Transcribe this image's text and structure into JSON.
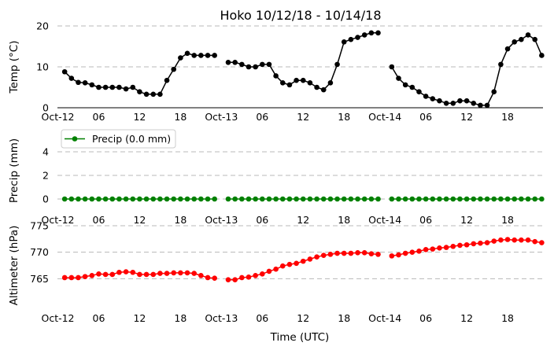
{
  "chart_data": [
    {
      "type": "line",
      "title": "Hoko 10/12/18 - 10/14/18",
      "ylabel": "Temp (°C)",
      "ylim": [
        0,
        20
      ],
      "yticks": [
        "0",
        "10",
        "20"
      ],
      "xticks": [
        "Oct-12",
        "06",
        "12",
        "18",
        "Oct-13",
        "06",
        "12",
        "18",
        "Oct-14",
        "06",
        "12",
        "18"
      ],
      "grid": "horizontal-dashed",
      "series": [
        {
          "color": "#000000",
          "points": [
            [
              1,
              8.8
            ],
            [
              2,
              7.2
            ],
            [
              3,
              6.2
            ],
            [
              4,
              6.1
            ],
            [
              5,
              5.6
            ],
            [
              6,
              5
            ],
            [
              7,
              5
            ],
            [
              8,
              5
            ],
            [
              9,
              5
            ],
            [
              10,
              4.6
            ],
            [
              11,
              5
            ],
            [
              12,
              3.9
            ],
            [
              13,
              3.3
            ],
            [
              14,
              3.3
            ],
            [
              15,
              3.3
            ],
            [
              16,
              6.7
            ],
            [
              17,
              9.4
            ],
            [
              18,
              12.2
            ],
            [
              19,
              13.3
            ],
            [
              20,
              12.8
            ],
            [
              21,
              12.8
            ],
            [
              22,
              12.8
            ],
            [
              23,
              12.8
            ],
            [
              25,
              11.1
            ],
            [
              26,
              11.1
            ],
            [
              27,
              10.6
            ],
            [
              28,
              10
            ],
            [
              29,
              10
            ],
            [
              30,
              10.6
            ],
            [
              31,
              10.6
            ],
            [
              32,
              7.8
            ],
            [
              33,
              6.1
            ],
            [
              34,
              5.6
            ],
            [
              35,
              6.7
            ],
            [
              36,
              6.7
            ],
            [
              37,
              6.1
            ],
            [
              38,
              5
            ],
            [
              39,
              4.4
            ],
            [
              40,
              6.1
            ],
            [
              41,
              10.6
            ],
            [
              42,
              16.1
            ],
            [
              43,
              16.7
            ],
            [
              44,
              17.2
            ],
            [
              45,
              17.8
            ],
            [
              46,
              18.3
            ],
            [
              47,
              18.3
            ],
            [
              49,
              10
            ],
            [
              50,
              7.2
            ],
            [
              51,
              5.6
            ],
            [
              52,
              5
            ],
            [
              53,
              3.9
            ],
            [
              54,
              2.8
            ],
            [
              55,
              2.2
            ],
            [
              56,
              1.7
            ],
            [
              57,
              1.1
            ],
            [
              58,
              1.1
            ],
            [
              59,
              1.7
            ],
            [
              60,
              1.7
            ],
            [
              61,
              1.1
            ],
            [
              62,
              0.6
            ],
            [
              63,
              0.6
            ],
            [
              64,
              3.9
            ],
            [
              65,
              10.6
            ],
            [
              66,
              14.4
            ],
            [
              67,
              16.1
            ],
            [
              68,
              16.7
            ],
            [
              69,
              17.8
            ],
            [
              70,
              16.7
            ],
            [
              71,
              12.8
            ]
          ]
        }
      ]
    },
    {
      "type": "line",
      "title": "",
      "ylabel": "Precip (mm)",
      "ylim": [
        -0.2,
        5
      ],
      "yticks": [
        "0",
        "2",
        "4"
      ],
      "xticks": [
        "Oct-12",
        "06",
        "12",
        "18",
        "Oct-13",
        "06",
        "12",
        "18",
        "Oct-14",
        "06",
        "12",
        "18"
      ],
      "grid": "horizontal-dashed",
      "legend": "top-left",
      "series": [
        {
          "name": "Precip (0.0 mm)",
          "color": "#008000",
          "points": [
            [
              1,
              0
            ],
            [
              2,
              0
            ],
            [
              3,
              0
            ],
            [
              4,
              0
            ],
            [
              5,
              0
            ],
            [
              6,
              0
            ],
            [
              7,
              0
            ],
            [
              8,
              0
            ],
            [
              9,
              0
            ],
            [
              10,
              0
            ],
            [
              11,
              0
            ],
            [
              12,
              0
            ],
            [
              13,
              0
            ],
            [
              14,
              0
            ],
            [
              15,
              0
            ],
            [
              16,
              0
            ],
            [
              17,
              0
            ],
            [
              18,
              0
            ],
            [
              19,
              0
            ],
            [
              20,
              0
            ],
            [
              21,
              0
            ],
            [
              22,
              0
            ],
            [
              23,
              0
            ],
            [
              25,
              0
            ],
            [
              26,
              0
            ],
            [
              27,
              0
            ],
            [
              28,
              0
            ],
            [
              29,
              0
            ],
            [
              30,
              0
            ],
            [
              31,
              0
            ],
            [
              32,
              0
            ],
            [
              33,
              0
            ],
            [
              34,
              0
            ],
            [
              35,
              0
            ],
            [
              36,
              0
            ],
            [
              37,
              0
            ],
            [
              38,
              0
            ],
            [
              39,
              0
            ],
            [
              40,
              0
            ],
            [
              41,
              0
            ],
            [
              42,
              0
            ],
            [
              43,
              0
            ],
            [
              44,
              0
            ],
            [
              45,
              0
            ],
            [
              46,
              0
            ],
            [
              47,
              0
            ],
            [
              49,
              0
            ],
            [
              50,
              0
            ],
            [
              51,
              0
            ],
            [
              52,
              0
            ],
            [
              53,
              0
            ],
            [
              54,
              0
            ],
            [
              55,
              0
            ],
            [
              56,
              0
            ],
            [
              57,
              0
            ],
            [
              58,
              0
            ],
            [
              59,
              0
            ],
            [
              60,
              0
            ],
            [
              61,
              0
            ],
            [
              62,
              0
            ],
            [
              63,
              0
            ],
            [
              64,
              0
            ],
            [
              65,
              0
            ],
            [
              66,
              0
            ],
            [
              67,
              0
            ],
            [
              68,
              0
            ],
            [
              69,
              0
            ],
            [
              70,
              0
            ],
            [
              71,
              0
            ]
          ]
        }
      ]
    },
    {
      "type": "line",
      "title": "",
      "ylabel": "Altimeter (hPa)",
      "xlabel": "Time (UTC)",
      "ylim": [
        760,
        775
      ],
      "yticks": [
        "765",
        "770",
        "775"
      ],
      "xticks": [
        "Oct-12",
        "06",
        "12",
        "18",
        "Oct-13",
        "06",
        "12",
        "18",
        "Oct-14",
        "06",
        "12",
        "18"
      ],
      "grid": "horizontal-dashed",
      "series": [
        {
          "color": "#ff0000",
          "points": [
            [
              1,
              765.2
            ],
            [
              2,
              765.2
            ],
            [
              3,
              765.2
            ],
            [
              4,
              765.4
            ],
            [
              5,
              765.6
            ],
            [
              6,
              765.9
            ],
            [
              7,
              765.8
            ],
            [
              8,
              765.8
            ],
            [
              9,
              766.2
            ],
            [
              10,
              766.3
            ],
            [
              11,
              766.2
            ],
            [
              12,
              765.8
            ],
            [
              13,
              765.8
            ],
            [
              14,
              765.8
            ],
            [
              15,
              766
            ],
            [
              16,
              766
            ],
            [
              17,
              766.1
            ],
            [
              18,
              766.1
            ],
            [
              19,
              766.1
            ],
            [
              20,
              766
            ],
            [
              21,
              765.6
            ],
            [
              22,
              765.2
            ],
            [
              23,
              765.1
            ],
            [
              25,
              764.8
            ],
            [
              26,
              764.8
            ],
            [
              27,
              765.2
            ],
            [
              28,
              765.3
            ],
            [
              29,
              765.6
            ],
            [
              30,
              765.9
            ],
            [
              31,
              766.4
            ],
            [
              32,
              766.8
            ],
            [
              33,
              767.4
            ],
            [
              34,
              767.7
            ],
            [
              35,
              767.9
            ],
            [
              36,
              768.3
            ],
            [
              37,
              768.7
            ],
            [
              38,
              769.1
            ],
            [
              39,
              769.4
            ],
            [
              40,
              769.6
            ],
            [
              41,
              769.8
            ],
            [
              42,
              769.8
            ],
            [
              43,
              769.8
            ],
            [
              44,
              769.9
            ],
            [
              45,
              769.9
            ],
            [
              46,
              769.7
            ],
            [
              47,
              769.6
            ],
            [
              49,
              769.3
            ],
            [
              50,
              769.5
            ],
            [
              51,
              769.8
            ],
            [
              52,
              770
            ],
            [
              53,
              770.2
            ],
            [
              54,
              770.5
            ],
            [
              55,
              770.6
            ],
            [
              56,
              770.8
            ],
            [
              57,
              770.9
            ],
            [
              58,
              771.1
            ],
            [
              59,
              771.3
            ],
            [
              60,
              771.4
            ],
            [
              61,
              771.6
            ],
            [
              62,
              771.7
            ],
            [
              63,
              771.8
            ],
            [
              64,
              772.1
            ],
            [
              65,
              772.3
            ],
            [
              66,
              772.4
            ],
            [
              67,
              772.3
            ],
            [
              68,
              772.3
            ],
            [
              69,
              772.3
            ],
            [
              70,
              772
            ],
            [
              71,
              771.8
            ]
          ]
        }
      ]
    }
  ]
}
